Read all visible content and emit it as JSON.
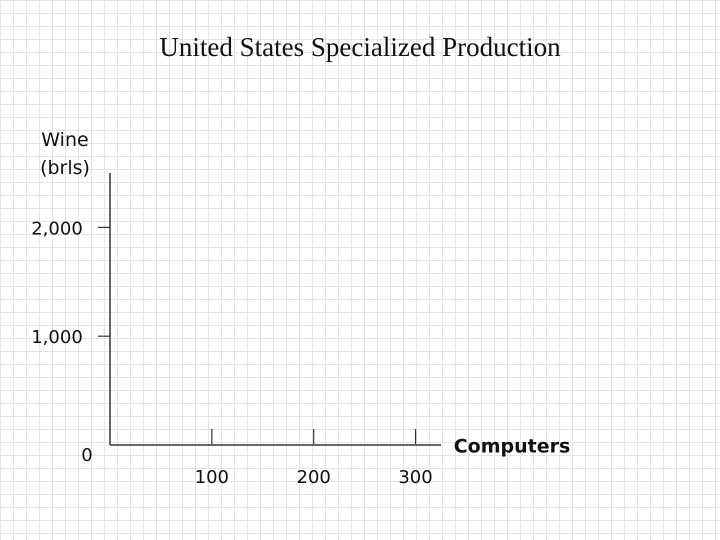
{
  "chart_data": {
    "type": "line",
    "title": "United States Specialized Production",
    "y_label": "Wine (brls)",
    "x_label": "Computers",
    "series": [],
    "xlim": [
      0,
      325
    ],
    "xticks": [
      100,
      200,
      300
    ],
    "ylim": [
      0,
      2500
    ],
    "yticks": [
      0,
      {
        "value": 1000,
        "label": "1,000"
      },
      {
        "value": 2000,
        "label": "2,000"
      }
    ]
  }
}
